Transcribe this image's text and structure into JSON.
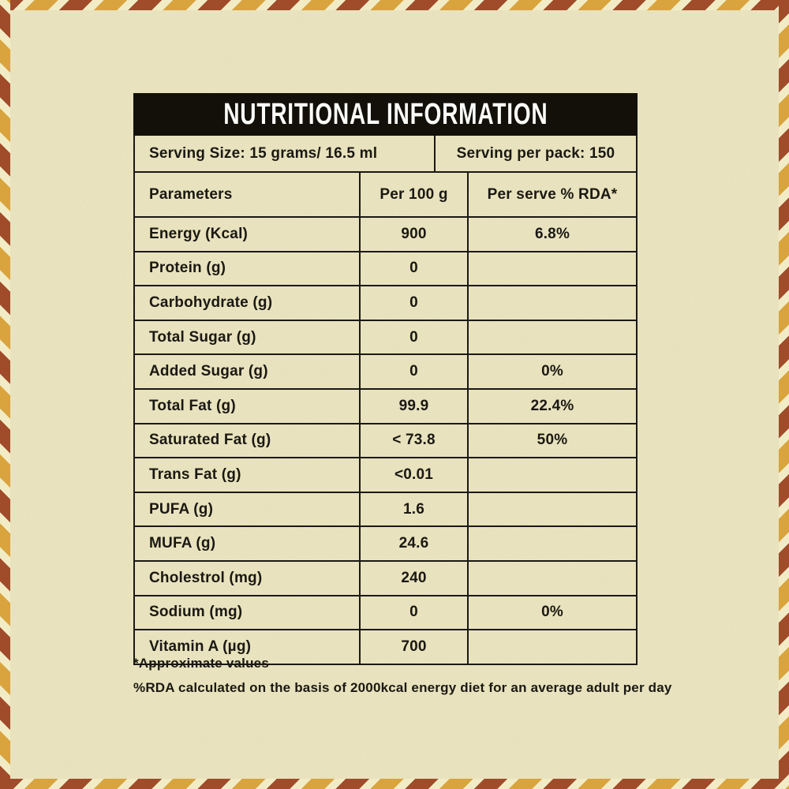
{
  "title": "NUTRITIONAL INFORMATION",
  "serving": {
    "size_label": "Serving Size: 15 grams/ 16.5 ml",
    "per_pack_label": "Serving per pack: 150"
  },
  "table": {
    "columns": [
      "Parameters",
      "Per 100 g",
      "Per serve % RDA*"
    ],
    "rows": [
      {
        "parameter": "Energy (Kcal)",
        "per_100g": "900",
        "per_serve_rda": "6.8%"
      },
      {
        "parameter": "Protein (g)",
        "per_100g": "0",
        "per_serve_rda": ""
      },
      {
        "parameter": "Carbohydrate (g)",
        "per_100g": "0",
        "per_serve_rda": ""
      },
      {
        "parameter": "Total Sugar (g)",
        "per_100g": "0",
        "per_serve_rda": ""
      },
      {
        "parameter": "Added Sugar (g)",
        "per_100g": "0",
        "per_serve_rda": "0%"
      },
      {
        "parameter": "Total Fat (g)",
        "per_100g": "99.9",
        "per_serve_rda": "22.4%"
      },
      {
        "parameter": "Saturated Fat (g)",
        "per_100g": "< 73.8",
        "per_serve_rda": "50%"
      },
      {
        "parameter": "Trans Fat (g)",
        "per_100g": "<0.01",
        "per_serve_rda": ""
      },
      {
        "parameter": "PUFA (g)",
        "per_100g": "1.6",
        "per_serve_rda": ""
      },
      {
        "parameter": "MUFA (g)",
        "per_100g": "24.6",
        "per_serve_rda": ""
      },
      {
        "parameter": "Cholestrol (mg)",
        "per_100g": "240",
        "per_serve_rda": ""
      },
      {
        "parameter": "Sodium (mg)",
        "per_100g": "0",
        "per_serve_rda": "0%"
      },
      {
        "parameter": "Vitamin A (µg)",
        "per_100g": "700",
        "per_serve_rda": ""
      }
    ]
  },
  "footnotes": [
    "*Approximate values",
    "%RDA calculated on the basis of 2000kcal energy diet for an average adult per day"
  ],
  "colors": {
    "background": "#F2ECC6",
    "stripe_red": "#A04C2B",
    "stripe_gold": "#D9A43E",
    "title_bar_bg": "#121008",
    "text": "#1A1812",
    "line": "#1A1914"
  }
}
